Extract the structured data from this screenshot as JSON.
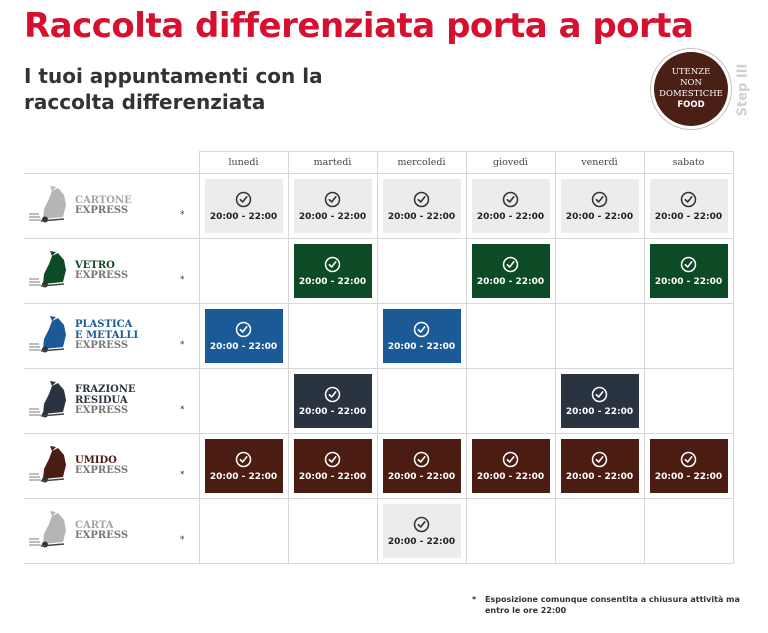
{
  "header": {
    "title": "Raccolta differenziata porta a porta",
    "subtitle": "I tuoi appuntamenti con la raccolta differenziata"
  },
  "badge": {
    "line1": "UTENZE",
    "line2": "NON",
    "line3": "DOMESTICHE",
    "line4": "FOOD"
  },
  "step_label": "Step III",
  "days": [
    "lunedì",
    "martedì",
    "mercoledì",
    "giovedì",
    "venerdì",
    "sabato"
  ],
  "time_slot": "20:00 - 22:00",
  "materials": [
    {
      "name": [
        "CARTONE"
      ],
      "sub": "EXPRESS",
      "color": "#b5b5b5",
      "slots": [
        true,
        true,
        true,
        true,
        true,
        true
      ]
    },
    {
      "name": [
        "VETRO"
      ],
      "sub": "EXPRESS",
      "color": "#0d4a26",
      "slots": [
        false,
        true,
        false,
        true,
        false,
        true
      ]
    },
    {
      "name": [
        "PLASTICA",
        "E METALLI"
      ],
      "sub": "EXPRESS",
      "color": "#1b5a97",
      "slots": [
        true,
        false,
        true,
        false,
        false,
        false
      ]
    },
    {
      "name": [
        "FRAZIONE",
        "RESIDUA"
      ],
      "sub": "EXPRESS",
      "color": "#2a3340",
      "slots": [
        false,
        true,
        false,
        false,
        true,
        false
      ]
    },
    {
      "name": [
        "UMIDO"
      ],
      "sub": "EXPRESS",
      "color": "#4a1c12",
      "slots": [
        true,
        true,
        true,
        true,
        true,
        true
      ]
    },
    {
      "name": [
        "CARTA"
      ],
      "sub": "EXPRESS",
      "color": "#b5b5b5",
      "slots": [
        false,
        false,
        true,
        false,
        false,
        false
      ]
    }
  ],
  "row_marker": "*",
  "footnote": {
    "marker": "*",
    "text": "Esposizione comunque consentita a chiusura attività ma entro le ore 22:00"
  }
}
